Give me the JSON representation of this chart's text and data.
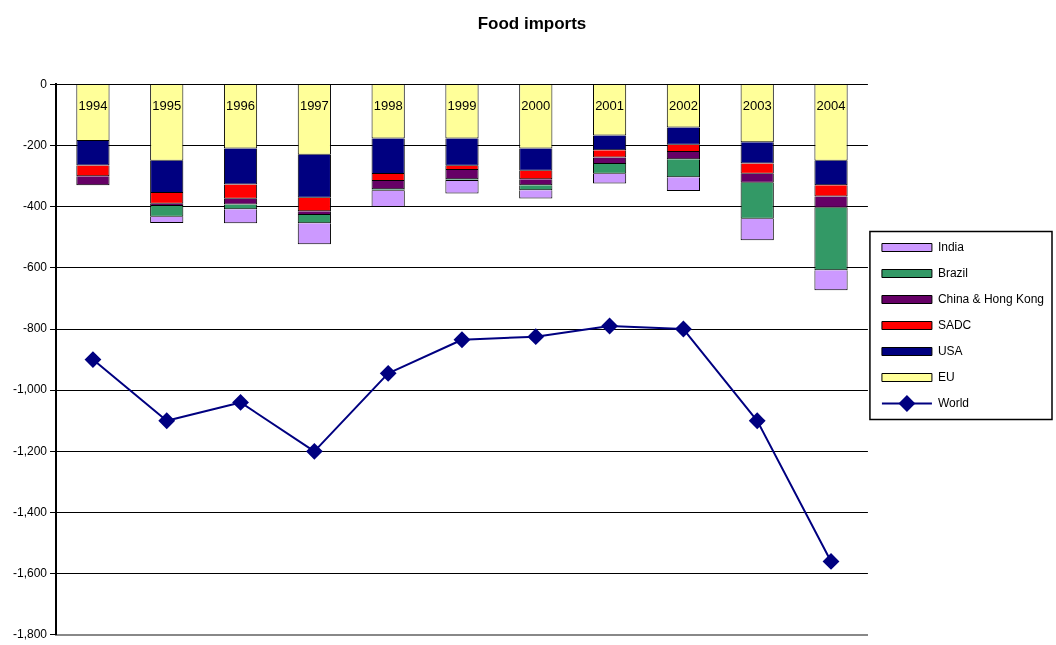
{
  "chart_data": {
    "type": "bar",
    "title": "Food imports",
    "stacked": true,
    "categories": [
      "1994",
      "1995",
      "1996",
      "1997",
      "1998",
      "1999",
      "2000",
      "2001",
      "2002",
      "2003",
      "2004"
    ],
    "series": [
      {
        "name": "EU",
        "color": "#ffff99",
        "values": [
          -185,
          -250,
          -210,
          -230,
          -177,
          -177,
          -210,
          -167,
          -141,
          -189,
          -250
        ]
      },
      {
        "name": "USA",
        "color": "#000080",
        "values": [
          -80,
          -105,
          -117,
          -141,
          -116,
          -89,
          -72,
          -48,
          -56,
          -70,
          -80
        ]
      },
      {
        "name": "SADC",
        "color": "#ff0000",
        "values": [
          -35,
          -35,
          -47,
          -44,
          -23,
          -14,
          -28,
          -24,
          -24,
          -33,
          -37
        ]
      },
      {
        "name": "China & Hong Kong",
        "color": "#660066",
        "values": [
          -30,
          -8,
          -19,
          -12,
          -27,
          -30,
          -20,
          -21,
          -24,
          -30,
          -36
        ]
      },
      {
        "name": "Brazil",
        "color": "#339966",
        "values": [
          0,
          -35,
          -15,
          -27,
          -5,
          -6,
          -16,
          -32,
          -59,
          -117,
          -205
        ]
      },
      {
        "name": "India",
        "color": "#cc99ff",
        "values": [
          0,
          -20,
          -46,
          -69,
          -53,
          -41,
          -27,
          -32,
          -45,
          -71,
          -65
        ]
      },
      {
        "name": "World",
        "type": "line",
        "color": "#000080",
        "marker": "diamond",
        "line_style": "solid",
        "values": [
          -900,
          -1100,
          -1040,
          -1200,
          -945,
          -835,
          -825,
          -790,
          -800,
          -1100,
          -1560
        ]
      }
    ],
    "ylim": [
      -1800,
      0
    ],
    "yticks": [
      {
        "value": -1800,
        "label": "-1,800"
      },
      {
        "value": -1600,
        "label": "-1,600"
      },
      {
        "value": -1400,
        "label": "-1,400"
      },
      {
        "value": -1200,
        "label": "-1,200"
      },
      {
        "value": -1000,
        "label": "-1,000"
      },
      -800,
      -600,
      -400,
      -200,
      0
    ],
    "grid": "y",
    "legend": "right"
  }
}
